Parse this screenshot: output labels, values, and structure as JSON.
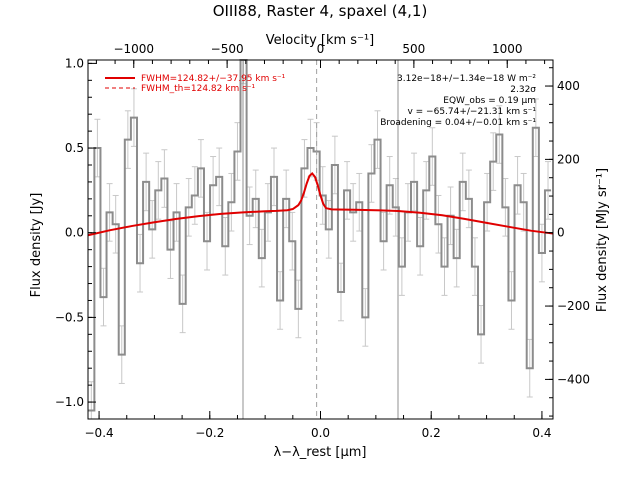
{
  "chart_data": {
    "type": "line",
    "title": "OIII88, Raster 4, spaxel (4,1)",
    "xlabel": "λ−λ_rest [μm]",
    "ylabel": "Flux density [Jy]",
    "x2label": "Velocity [km s⁻¹]",
    "y2label": "Flux density [MJy sr⁻¹]",
    "xlim": [
      -0.42,
      0.42
    ],
    "ylim": [
      -1.1,
      1.02
    ],
    "x2lim": [
      -1245,
      1245
    ],
    "y2lim": [
      -508,
      471
    ],
    "grid": false,
    "legend_position": "top-left",
    "x_ticks": [
      -0.4,
      -0.2,
      0.0,
      0.2,
      0.4
    ],
    "x_tick_labels": [
      "−0.4",
      "−0.2",
      "0.0",
      "0.2",
      "0.4"
    ],
    "y_ticks": [
      -1.0,
      -0.5,
      0.0,
      0.5,
      1.0
    ],
    "y_tick_labels": [
      "−1.0",
      "−0.5",
      "0.0",
      "0.5",
      "1.0"
    ],
    "x2_ticks": [
      -1000,
      -500,
      0,
      500,
      1000
    ],
    "x2_tick_labels": [
      "−1000",
      "−500",
      "0",
      "500",
      "1000"
    ],
    "y2_ticks": [
      -400,
      -200,
      0,
      200,
      400
    ],
    "y2_tick_labels": [
      "−400",
      "−200",
      "0",
      "200",
      "400"
    ],
    "vertical_lines": [
      {
        "x": -0.14,
        "style": "solid"
      },
      {
        "x": 0.14,
        "style": "solid"
      },
      {
        "x": -0.007,
        "style": "dashed"
      }
    ],
    "legend": [
      {
        "label": "FWHM=124.82+/−37.95 km s⁻¹",
        "style": "solid",
        "color": "#e00000"
      },
      {
        "label": "FWHM_th=124.82 km s⁻¹",
        "style": "dashed",
        "color": "#e00000"
      }
    ],
    "annotations": [
      "3.12e−18+/−1.34e−18 W m⁻²",
      "2.32σ",
      "EQW_obs = 0.19 μm",
      "v = −65.74+/−21.31 km s⁻¹",
      "Broadening = 0.04+/−0.01 km s⁻¹"
    ],
    "series": [
      {
        "name": "data",
        "color": "#808080",
        "x": [
          -0.414,
          -0.403,
          -0.392,
          -0.381,
          -0.37,
          -0.359,
          -0.348,
          -0.337,
          -0.326,
          -0.315,
          -0.304,
          -0.293,
          -0.282,
          -0.271,
          -0.26,
          -0.249,
          -0.238,
          -0.227,
          -0.216,
          -0.205,
          -0.194,
          -0.183,
          -0.172,
          -0.161,
          -0.15,
          -0.139,
          -0.128,
          -0.117,
          -0.106,
          -0.095,
          -0.084,
          -0.073,
          -0.062,
          -0.051,
          -0.04,
          -0.029,
          -0.018,
          -0.007,
          0.004,
          0.015,
          0.026,
          0.037,
          0.048,
          0.059,
          0.07,
          0.081,
          0.092,
          0.103,
          0.114,
          0.125,
          0.136,
          0.147,
          0.158,
          0.169,
          0.18,
          0.191,
          0.202,
          0.213,
          0.224,
          0.235,
          0.246,
          0.257,
          0.268,
          0.279,
          0.29,
          0.301,
          0.312,
          0.323,
          0.334,
          0.345,
          0.356,
          0.367,
          0.378,
          0.389,
          0.4,
          0.411
        ],
        "y": [
          -1.05,
          0.5,
          -0.38,
          0.12,
          0.05,
          -0.72,
          0.55,
          0.68,
          -0.18,
          0.3,
          0.02,
          0.25,
          0.32,
          -0.1,
          0.12,
          -0.42,
          0.15,
          0.22,
          0.38,
          -0.05,
          0.28,
          0.33,
          -0.08,
          0.18,
          0.48,
          1.05,
          0.1,
          0.2,
          -0.15,
          0.12,
          0.33,
          -0.4,
          0.2,
          -0.05,
          -0.45,
          0.38,
          0.5,
          0.48,
          0.22,
          0.02,
          0.4,
          -0.35,
          0.25,
          0.12,
          0.18,
          -0.5,
          0.35,
          0.55,
          -0.05,
          0.28,
          0.15,
          -0.2,
          0.12,
          0.3,
          -0.08,
          0.25,
          0.45,
          0.05,
          -0.2,
          0.1,
          -0.15,
          0.3,
          0.2,
          -0.2,
          -0.6,
          0.18,
          0.42,
          0.58,
          0.15,
          -0.4,
          0.28,
          0.18,
          -0.8,
          0.62,
          -0.12,
          0.25
        ],
        "yerr": [
          0.17,
          0.17,
          0.17,
          0.17,
          0.17,
          0.17,
          0.17,
          0.17,
          0.17,
          0.17,
          0.17,
          0.17,
          0.17,
          0.17,
          0.17,
          0.17,
          0.17,
          0.17,
          0.17,
          0.17,
          0.17,
          0.17,
          0.17,
          0.17,
          0.17,
          0.17,
          0.17,
          0.17,
          0.17,
          0.17,
          0.17,
          0.17,
          0.17,
          0.17,
          0.17,
          0.17,
          0.17,
          0.17,
          0.17,
          0.17,
          0.17,
          0.17,
          0.17,
          0.17,
          0.17,
          0.17,
          0.17,
          0.17,
          0.17,
          0.17,
          0.17,
          0.17,
          0.17,
          0.17,
          0.17,
          0.17,
          0.17,
          0.17,
          0.17,
          0.17,
          0.17,
          0.17,
          0.17,
          0.17,
          0.17,
          0.17,
          0.17,
          0.17,
          0.17,
          0.17,
          0.17,
          0.17,
          0.17,
          0.17,
          0.17,
          0.17
        ]
      },
      {
        "name": "fit",
        "color": "#e00000",
        "x": [
          -0.42,
          -0.38,
          -0.34,
          -0.3,
          -0.26,
          -0.22,
          -0.18,
          -0.14,
          -0.1,
          -0.08,
          -0.06,
          -0.05,
          -0.04,
          -0.035,
          -0.03,
          -0.025,
          -0.02,
          -0.015,
          -0.01,
          -0.005,
          0.0,
          0.005,
          0.01,
          0.02,
          0.03,
          0.06,
          0.1,
          0.14,
          0.18,
          0.22,
          0.26,
          0.3,
          0.34,
          0.38,
          0.42
        ],
        "y": [
          -0.015,
          0.015,
          0.04,
          0.062,
          0.082,
          0.098,
          0.111,
          0.12,
          0.127,
          0.129,
          0.133,
          0.14,
          0.163,
          0.19,
          0.235,
          0.29,
          0.335,
          0.35,
          0.33,
          0.28,
          0.22,
          0.17,
          0.145,
          0.138,
          0.137,
          0.136,
          0.133,
          0.128,
          0.118,
          0.103,
          0.082,
          0.058,
          0.035,
          0.012,
          -0.005
        ]
      }
    ]
  }
}
